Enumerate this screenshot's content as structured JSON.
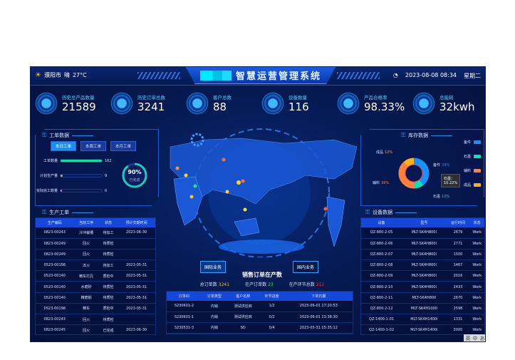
{
  "header": {
    "city": "濮阳市",
    "weather": "晴",
    "temp": "27°C",
    "title": "智慧运营管理系统",
    "datetime": "2023-08-08 08:34",
    "weekday": "星期二"
  },
  "kpis": [
    {
      "label": "历史总产品数量",
      "value": "21589"
    },
    {
      "label": "历史订单总数",
      "value": "3241"
    },
    {
      "label": "客户总数",
      "value": "88"
    },
    {
      "label": "设备数量",
      "value": "116"
    },
    {
      "label": "产品合格率",
      "value": "98.33%"
    },
    {
      "label": "总能耗",
      "value": "32kwh"
    }
  ],
  "work_orders": {
    "title": "工单数据",
    "tabs": [
      "本日工单",
      "本周工单",
      "本月工单"
    ],
    "active_tab": 0,
    "bars": [
      {
        "label": "工单数量",
        "value": "162",
        "fraction": 1.0,
        "color": "#1ad8a0"
      },
      {
        "label": "计划生产量",
        "value": "9",
        "fraction": 0.06,
        "color": "#ffa500"
      },
      {
        "label": "实际完工数量",
        "value": "0",
        "fraction": 0.04,
        "color": "#c080e0"
      }
    ],
    "ring": {
      "percent": 90,
      "value": "90%",
      "label": "已完成"
    }
  },
  "production": {
    "title": "生产工单",
    "columns": [
      "生产编码",
      "当前工序",
      "状态",
      "预计交期时间"
    ],
    "rows": [
      [
        "0823-00243",
        "冷冲裁槽",
        "待加工",
        "2023-06-30"
      ],
      [
        "0823-00249",
        "回火",
        "待质检",
        ""
      ],
      [
        "0823-00249",
        "回火",
        "待质检",
        ""
      ],
      [
        "0523-00198",
        "淬火",
        "待加工",
        "2023-05-31"
      ],
      [
        "0523-00140",
        "精车打孔",
        "质检中",
        "2023-05-31"
      ],
      [
        "0523-00140",
        "水磨砂",
        "待质检",
        "2023-05-31"
      ],
      [
        "0523-00140",
        "精磨削",
        "待质检",
        "2023-05-31"
      ],
      [
        "0523-00198",
        "精车",
        "质检中",
        "2023-05-31"
      ],
      [
        "0823-00243",
        "回火",
        "待质检",
        ""
      ],
      [
        "0823-00245",
        "回火",
        "已完成",
        "2023-06-30"
      ]
    ]
  },
  "inventory": {
    "title": "库存数据",
    "slices": [
      {
        "name": "备件",
        "value": 39,
        "label": "39%",
        "color": "#1a90ff"
      },
      {
        "name": "石墨",
        "value": 10,
        "label": "10%",
        "color": "#10e0b0"
      },
      {
        "name": "辅料",
        "value": 39,
        "label": "39%",
        "color": "#ff8040"
      },
      {
        "name": "成品",
        "value": 12,
        "label": "12%",
        "color": "#ffb020"
      }
    ],
    "tooltip": {
      "name": "石墨：",
      "value": "10.22%"
    }
  },
  "equipment": {
    "title": "设备数据",
    "columns": [
      "设备",
      "型号",
      "运行时间",
      "状态"
    ],
    "rows": [
      [
        "QZ-800-2-05",
        "MLT-SK4H800I",
        "2679",
        "Work"
      ],
      [
        "QZ-800-2-06",
        "MLT-SK4H800I",
        "2771",
        "Work"
      ],
      [
        "QZ-800-2-07",
        "MLT-SK4H800I",
        "1500",
        "Work"
      ],
      [
        "QZ-800-2-08",
        "MLT-SK4H800I",
        "1467",
        "Work"
      ],
      [
        "QZ-800-2-09",
        "MLT-SK4H800I",
        "2016",
        "Work"
      ],
      [
        "QZ-800-2-10",
        "MLT-SK4H800I",
        "2433",
        "Work"
      ],
      [
        "QZ-800-2-11",
        "MLT-SK4H800",
        "2670",
        "Work"
      ],
      [
        "QZ-800-2-12",
        "MLT-SK4H1000",
        "2598",
        "Work"
      ],
      [
        "QZ-1400-1-01",
        "MLT-SK4H1400i",
        "1331",
        "Work"
      ],
      [
        "QZ-1400-1-02",
        "MLT-SK4H1400i",
        "2000",
        "Work"
      ]
    ]
  },
  "sales": {
    "btn_intl": "国际业务",
    "btn_domestic": "国内业务",
    "title": "销售订单在产数",
    "stats": [
      {
        "label": "总订单数",
        "value": "3241",
        "color": "#ffc000"
      },
      {
        "label": "在产订单数",
        "value": "23",
        "color": "#30e060"
      },
      {
        "label": "在产环节总数",
        "value": "212",
        "color": "#ff3040"
      }
    ],
    "columns": [
      "订单ID",
      "订单类型",
      "客户名称",
      "环节进度",
      "下单日期"
    ],
    "rows": [
      [
        "S230601-2",
        "内销",
        "测试供应商",
        "1/2",
        "2023-06-01 17:20:53"
      ],
      [
        "S230601-1",
        "内销",
        "测试供应商",
        "0/2",
        "2023-06-01 13:38:30"
      ],
      [
        "S230531-3",
        "内销",
        "SD",
        "0/4",
        "2023-05-31 15:35:12"
      ]
    ]
  },
  "ime": [
    "英",
    "中",
    "あ"
  ]
}
